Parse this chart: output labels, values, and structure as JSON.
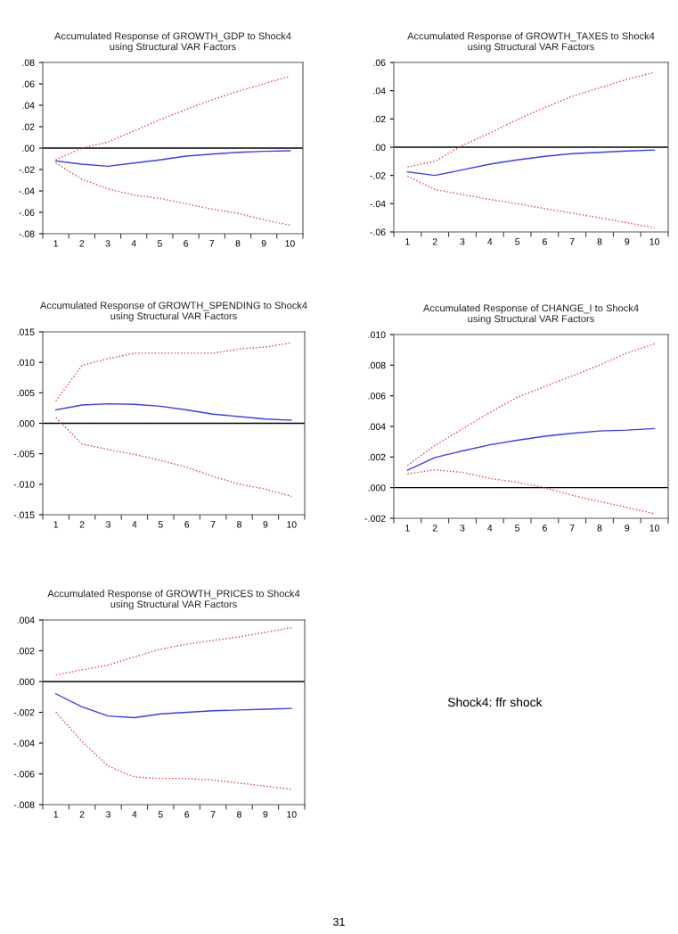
{
  "chart_data": [
    {
      "type": "line",
      "title": "Accumulated Response of GROWTH_GDP to Shock4\nusing Structural VAR Factors",
      "categories": [
        "1",
        "2",
        "3",
        "4",
        "5",
        "6",
        "7",
        "8",
        "9",
        "10"
      ],
      "series": [
        {
          "color": "#3b3bf0",
          "line_style": "solid",
          "values": [
            -0.012,
            -0.015,
            -0.017,
            -0.014,
            -0.011,
            -0.0075,
            -0.0056,
            -0.004,
            -0.003,
            -0.0025
          ]
        },
        {
          "color": "#e03a3a",
          "line_style": "dotted",
          "values": [
            -0.011,
            0.0,
            0.0056,
            0.016,
            0.0265,
            0.036,
            0.045,
            0.053,
            0.06,
            0.067
          ]
        },
        {
          "color": "#e03a3a",
          "line_style": "dotted",
          "values": [
            -0.014,
            -0.029,
            -0.038,
            -0.044,
            -0.047,
            -0.052,
            -0.057,
            -0.061,
            -0.067,
            -0.072
          ]
        }
      ],
      "ylim": [
        -0.08,
        0.08
      ],
      "yticks": [
        {
          "value": 0.08,
          "label": ".08"
        },
        {
          "value": 0.06,
          "label": ".06"
        },
        {
          "value": 0.04,
          "label": ".04"
        },
        {
          "value": 0.02,
          "label": ".02"
        },
        {
          "value": 0,
          "label": ".00"
        },
        {
          "value": -0.02,
          "label": "-.02"
        },
        {
          "value": -0.04,
          "label": "-.04"
        },
        {
          "value": -0.06,
          "label": "-.06"
        },
        {
          "value": -0.08,
          "label": "-.08"
        }
      ],
      "ref_lines": [
        {
          "axis": "y",
          "value": 0,
          "color": "#000000"
        }
      ],
      "grid": false
    },
    {
      "type": "line",
      "title": "Accumulated Response of GROWTH_TAXES to Shock4\nusing Structural VAR Factors",
      "categories": [
        "1",
        "2",
        "3",
        "4",
        "5",
        "6",
        "7",
        "8",
        "9",
        "10"
      ],
      "series": [
        {
          "color": "#3b3bf0",
          "line_style": "solid",
          "values": [
            -0.0175,
            -0.02,
            -0.016,
            -0.012,
            -0.009,
            -0.0065,
            -0.0046,
            -0.0036,
            -0.0027,
            -0.002
          ]
        },
        {
          "color": "#e03a3a",
          "line_style": "dotted",
          "values": [
            -0.014,
            -0.01,
            0.0013,
            0.01,
            0.0196,
            0.028,
            0.036,
            0.042,
            0.048,
            0.053
          ]
        },
        {
          "color": "#e03a3a",
          "line_style": "dotted",
          "values": [
            -0.0205,
            -0.03,
            -0.0335,
            -0.037,
            -0.04,
            -0.0435,
            -0.0467,
            -0.05,
            -0.0535,
            -0.057
          ]
        }
      ],
      "ylim": [
        -0.06,
        0.06
      ],
      "yticks": [
        {
          "value": 0.06,
          "label": ".06"
        },
        {
          "value": 0.04,
          "label": ".04"
        },
        {
          "value": 0.02,
          "label": ".02"
        },
        {
          "value": 0,
          "label": ".00"
        },
        {
          "value": -0.02,
          "label": "-.02"
        },
        {
          "value": -0.04,
          "label": "-.04"
        },
        {
          "value": -0.06,
          "label": "-.06"
        }
      ],
      "ref_lines": [
        {
          "axis": "y",
          "value": 0,
          "color": "#000000"
        }
      ],
      "grid": false
    },
    {
      "type": "line",
      "title": "Accumulated Response of GROWTH_SPENDING to Shock4\nusing Structural VAR Factors",
      "categories": [
        "1",
        "2",
        "3",
        "4",
        "5",
        "6",
        "7",
        "8",
        "9",
        "10"
      ],
      "series": [
        {
          "color": "#3b3bf0",
          "line_style": "solid",
          "values": [
            0.0022,
            0.003,
            0.0032,
            0.0031,
            0.0028,
            0.0022,
            0.0015,
            0.0011,
            0.0007,
            0.0005
          ]
        },
        {
          "color": "#e03a3a",
          "line_style": "dotted",
          "values": [
            0.0037,
            0.0095,
            0.0106,
            0.0115,
            0.0115,
            0.0115,
            0.0115,
            0.0122,
            0.0125,
            0.0132
          ]
        },
        {
          "color": "#e03a3a",
          "line_style": "dotted",
          "values": [
            0.0009,
            -0.0034,
            -0.0043,
            -0.0051,
            -0.0061,
            -0.0072,
            -0.0087,
            -0.01,
            -0.0108,
            -0.012
          ]
        }
      ],
      "ylim": [
        -0.015,
        0.015
      ],
      "yticks": [
        {
          "value": 0.015,
          "label": ".015"
        },
        {
          "value": 0.01,
          "label": ".010"
        },
        {
          "value": 0.005,
          "label": ".005"
        },
        {
          "value": 0,
          "label": ".000"
        },
        {
          "value": -0.005,
          "label": "-.005"
        },
        {
          "value": -0.01,
          "label": "-.010"
        },
        {
          "value": -0.015,
          "label": "-.015"
        }
      ],
      "ref_lines": [
        {
          "axis": "y",
          "value": 0,
          "color": "#000000"
        }
      ],
      "grid": false
    },
    {
      "type": "line",
      "title": "Accumulated Response of CHANGE_I to Shock4\nusing Structural VAR Factors",
      "categories": [
        "1",
        "2",
        "3",
        "4",
        "5",
        "6",
        "7",
        "8",
        "9",
        "10"
      ],
      "series": [
        {
          "color": "#3b3bf0",
          "line_style": "solid",
          "values": [
            0.00114,
            0.00197,
            0.0024,
            0.0028,
            0.0031,
            0.00336,
            0.00355,
            0.0037,
            0.00376,
            0.00386
          ]
        },
        {
          "color": "#e03a3a",
          "line_style": "dotted",
          "values": [
            0.00145,
            0.00276,
            0.00384,
            0.0049,
            0.0059,
            0.0066,
            0.0073,
            0.008,
            0.0088,
            0.0094
          ]
        },
        {
          "color": "#e03a3a",
          "line_style": "dotted",
          "values": [
            0.0009,
            0.00116,
            0.001,
            0.0006,
            0.00035,
            0.0,
            -0.0005,
            -0.0009,
            -0.0013,
            -0.0017
          ]
        }
      ],
      "ylim": [
        -0.002,
        0.01
      ],
      "yticks": [
        {
          "value": 0.01,
          "label": ".010"
        },
        {
          "value": 0.008,
          "label": ".008"
        },
        {
          "value": 0.006,
          "label": ".006"
        },
        {
          "value": 0.004,
          "label": ".004"
        },
        {
          "value": 0.002,
          "label": ".002"
        },
        {
          "value": 0,
          "label": ".000"
        },
        {
          "value": -0.002,
          "label": "-.002"
        }
      ],
      "ref_lines": [
        {
          "axis": "y",
          "value": 0,
          "color": "#000000"
        }
      ],
      "grid": false
    },
    {
      "type": "line",
      "title": "Accumulated Response of GROWTH_PRICES to Shock4\nusing Structural VAR Factors",
      "categories": [
        "1",
        "2",
        "3",
        "4",
        "5",
        "6",
        "7",
        "8",
        "9",
        "10"
      ],
      "series": [
        {
          "color": "#3b3bf0",
          "line_style": "solid",
          "values": [
            -0.0008,
            -0.00165,
            -0.00224,
            -0.00235,
            -0.0021,
            -0.002,
            -0.0019,
            -0.00185,
            -0.0018,
            -0.00175
          ]
        },
        {
          "color": "#e03a3a",
          "line_style": "dotted",
          "values": [
            0.00043,
            0.00076,
            0.00107,
            0.0016,
            0.0021,
            0.00243,
            0.00267,
            0.0029,
            0.0032,
            0.0035
          ]
        },
        {
          "color": "#e03a3a",
          "line_style": "dotted",
          "values": [
            -0.002,
            -0.0039,
            -0.0055,
            -0.0062,
            -0.0063,
            -0.0063,
            -0.0064,
            -0.0066,
            -0.0068,
            -0.007
          ]
        }
      ],
      "ylim": [
        -0.008,
        0.004
      ],
      "yticks": [
        {
          "value": 0.004,
          "label": ".004"
        },
        {
          "value": 0.002,
          "label": ".002"
        },
        {
          "value": 0,
          "label": ".000"
        },
        {
          "value": -0.002,
          "label": "-.002"
        },
        {
          "value": -0.004,
          "label": "-.004"
        },
        {
          "value": -0.006,
          "label": "-.006"
        },
        {
          "value": -0.008,
          "label": "-.008"
        }
      ],
      "ref_lines": [
        {
          "axis": "y",
          "value": 0,
          "color": "#000000"
        }
      ],
      "grid": false,
      "annotations": [
        "Shock4: ffr shock",
        "31"
      ]
    }
  ]
}
